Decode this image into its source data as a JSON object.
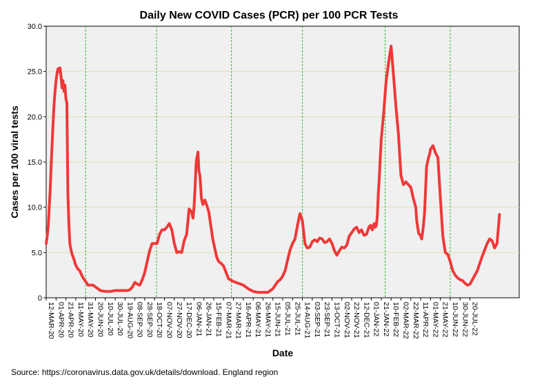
{
  "chart_data": {
    "type": "line",
    "title": "Daily New COVID Cases (PCR) per 100 PCR Tests",
    "xlabel": "Date",
    "ylabel": "Cases per 100 viral tests",
    "ylim": [
      0,
      30
    ],
    "yticks": [
      "0",
      "5.0",
      "10.0",
      "15.0",
      "20.0",
      "25.0",
      "30.0"
    ],
    "ytick_values": [
      0,
      5,
      10,
      15,
      20,
      25,
      30
    ],
    "grid": true,
    "source": "Source: https://coronavirus.data.gov.uk/details/download. England region",
    "xtick_labels": [
      "12-MAR-20",
      "01-APR-20",
      "21-APR-20",
      "11-MAY-20",
      "31-MAY-20",
      "20-JUN-20",
      "10-JUL-20",
      "30-JUL-20",
      "19-AUG-20",
      "08-SEP-20",
      "28-SEP-20",
      "18-OCT-20",
      "07-NOV-20",
      "27-NOV-20",
      "17-DEC-20",
      "06-JAN-21",
      "26-JAN-21",
      "15-FEB-21",
      "07-MAR-21",
      "27-MAR-21",
      "16-APR-21",
      "06-MAY-21",
      "26-MAY-21",
      "15-JUN-21",
      "05-JUL-21",
      "25-JUL-21",
      "14-AUG-21",
      "03-SEP-21",
      "23-SEP-21",
      "13-OCT-21",
      "02-NOV-21",
      "22-NOV-21",
      "12-DEC-21",
      "01-JAN-22",
      "21-JAN-22",
      "10-FEB-22",
      "02-MAR-22",
      "22-MAR-22",
      "11-APR-22",
      "01-MAY-22",
      "21-MAY-22",
      "10-JUN-22",
      "30-JUN-22",
      "20-JUL-22"
    ],
    "reference_lines_day": [
      80,
      224,
      376,
      520,
      688,
      820
    ],
    "series": [
      {
        "name": "Cases per 100 PCR tests",
        "color": "#ef3838",
        "day": [
          0,
          2,
          4,
          6,
          8,
          10,
          12,
          14,
          16,
          18,
          20,
          22,
          24,
          26,
          28,
          30,
          32,
          34,
          36,
          38,
          40,
          42,
          44,
          46,
          48,
          50,
          52,
          54,
          56,
          60,
          64,
          68,
          72,
          76,
          80,
          85,
          90,
          95,
          100,
          110,
          120,
          130,
          140,
          150,
          160,
          165,
          170,
          175,
          180,
          185,
          190,
          195,
          200,
          205,
          210,
          215,
          220,
          225,
          230,
          235,
          240,
          245,
          250,
          255,
          260,
          265,
          270,
          275,
          280,
          285,
          290,
          295,
          298,
          300,
          302,
          304,
          305,
          306,
          308,
          310,
          312,
          315,
          318,
          322,
          326,
          330,
          334,
          338,
          342,
          346,
          350,
          355,
          360,
          370,
          380,
          390,
          400,
          410,
          420,
          430,
          440,
          445,
          450,
          455,
          460,
          465,
          470,
          475,
          480,
          485,
          490,
          495,
          500,
          505,
          510,
          515,
          520,
          525,
          530,
          535,
          540,
          545,
          550,
          555,
          560,
          565,
          570,
          575,
          580,
          585,
          590,
          595,
          600,
          605,
          610,
          615,
          620,
          625,
          630,
          635,
          640,
          645,
          650,
          655,
          658,
          660,
          662,
          664,
          666,
          668,
          670,
          672,
          674,
          676,
          678,
          680,
          685,
          690,
          695,
          700,
          705,
          710,
          715,
          720,
          725,
          730,
          735,
          740,
          745,
          750,
          752,
          754,
          756,
          758,
          760,
          762,
          764,
          766,
          768,
          770,
          772,
          774,
          776,
          778,
          780,
          785,
          790,
          795,
          800,
          805,
          810,
          815,
          820,
          825,
          830,
          835,
          840,
          845,
          850,
          855,
          860,
          865,
          870,
          875,
          880,
          885,
          890,
          895,
          900,
          905,
          910,
          915,
          920,
          925,
          930,
          935,
          940,
          945,
          950,
          955,
          960
        ],
        "values": [
          6.0,
          6.8,
          7.8,
          9.8,
          11.8,
          14.5,
          17.0,
          19.3,
          21.4,
          22.8,
          24.0,
          24.8,
          25.3,
          25.0,
          25.4,
          24.5,
          23.2,
          24.0,
          22.8,
          23.5,
          22.0,
          21.5,
          11.5,
          8.2,
          6.0,
          5.4,
          4.9,
          4.6,
          4.3,
          3.6,
          3.2,
          3.0,
          2.5,
          2.1,
          1.8,
          1.4,
          1.4,
          1.4,
          1.2,
          0.8,
          0.7,
          0.7,
          0.8,
          0.8,
          0.8,
          0.8,
          0.9,
          1.2,
          1.7,
          1.5,
          1.4,
          2.0,
          2.8,
          4.0,
          5.2,
          6.0,
          6.0,
          6.0,
          7.0,
          7.5,
          7.5,
          7.8,
          8.2,
          7.5,
          6.0,
          5.0,
          5.1,
          5.0,
          6.3,
          7.0,
          9.8,
          9.5,
          8.8,
          10.0,
          12.0,
          14.5,
          15.2,
          15.5,
          16.1,
          14.0,
          13.5,
          11.0,
          10.3,
          10.8,
          10.2,
          9.5,
          8.0,
          6.5,
          5.5,
          4.5,
          4.0,
          3.8,
          3.5,
          2.1,
          1.8,
          1.6,
          1.4,
          1.0,
          0.7,
          0.6,
          0.6,
          0.6,
          0.6,
          0.8,
          1.0,
          1.4,
          1.8,
          2.0,
          2.4,
          3.0,
          4.2,
          5.3,
          6.0,
          6.5,
          8.0,
          9.3,
          8.5,
          6.0,
          5.5,
          5.6,
          6.2,
          6.4,
          6.2,
          6.6,
          6.5,
          6.1,
          6.2,
          6.5,
          6.0,
          5.2,
          4.7,
          5.2,
          5.6,
          5.5,
          5.8,
          6.8,
          7.2,
          7.6,
          7.8,
          7.2,
          7.5,
          6.9,
          7.0,
          7.8,
          8.0,
          7.7,
          7.5,
          8.0,
          8.2,
          7.8,
          8.0,
          9.0,
          11.5,
          13.2,
          15.5,
          17.5,
          20.5,
          24.0,
          26.0,
          27.8,
          24.5,
          21.0,
          18.0,
          13.5,
          12.5,
          12.8,
          12.5,
          12.2,
          11.0,
          10.0,
          8.5,
          7.8,
          7.1,
          7.0,
          6.8,
          6.5,
          7.2,
          8.2,
          9.5,
          12.0,
          14.5,
          15.0,
          15.5,
          15.8,
          16.4,
          16.8,
          16.0,
          15.5,
          11.0,
          6.8,
          5.0,
          4.8,
          4.0,
          3.0,
          2.5,
          2.2,
          2.0,
          1.9,
          1.6,
          1.4,
          1.5,
          2.0,
          2.5,
          3.0,
          3.8,
          4.6,
          5.3,
          6.0,
          6.5,
          6.3,
          5.5,
          6.0,
          9.2
        ]
      }
    ]
  }
}
